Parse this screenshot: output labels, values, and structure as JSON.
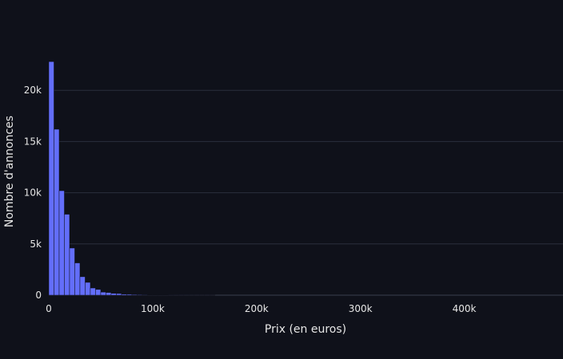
{
  "chart_data": {
    "type": "bar",
    "xlabel": "Prix (en euros)",
    "ylabel": "Nombre d'annonces",
    "xlim": [
      0,
      495000
    ],
    "ylim": [
      0,
      25700
    ],
    "bin_width": 5000,
    "bin_starts": [
      0,
      5000,
      10000,
      15000,
      20000,
      25000,
      30000,
      35000,
      40000,
      45000,
      50000,
      55000,
      60000,
      65000,
      70000,
      75000,
      80000,
      85000,
      90000,
      95000,
      100000,
      105000,
      110000,
      115000,
      120000,
      125000,
      130000,
      135000,
      140000,
      145000,
      150000,
      155000
    ],
    "values": [
      22800,
      16200,
      10200,
      7900,
      4600,
      3150,
      1800,
      1250,
      700,
      560,
      300,
      260,
      180,
      160,
      100,
      90,
      70,
      55,
      45,
      35,
      30,
      25,
      20,
      15,
      12,
      10,
      8,
      6,
      5,
      4,
      3,
      2
    ],
    "x_ticks": [
      0,
      100000,
      200000,
      300000,
      400000
    ],
    "x_tick_labels": [
      "0",
      "100k",
      "200k",
      "300k",
      "400k"
    ],
    "y_ticks": [
      0,
      5000,
      10000,
      15000,
      20000
    ],
    "y_tick_labels": [
      "0",
      "5k",
      "10k",
      "15k",
      "20k"
    ],
    "grid": true,
    "bar_color": "#636efa",
    "background_color": "#0f111a",
    "grid_color": "#2a2f3d",
    "text_color": "#e6e6e6"
  }
}
